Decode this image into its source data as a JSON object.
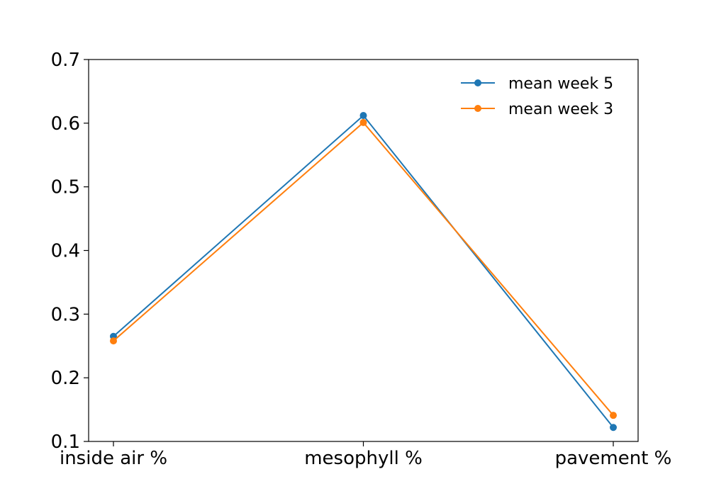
{
  "chart_data": {
    "type": "line",
    "categories": [
      "inside air %",
      "mesophyll %",
      "pavement %"
    ],
    "ylim": [
      0.1,
      0.7
    ],
    "yticks": [
      "0.1",
      "0.2",
      "0.3",
      "0.4",
      "0.5",
      "0.6",
      "0.7"
    ],
    "grid": false,
    "legend_position": "top-right",
    "series": [
      {
        "name": "mean week 5",
        "color": "#1f77b4",
        "values": [
          0.265,
          0.612,
          0.122
        ]
      },
      {
        "name": "mean week 3",
        "color": "#ff7f0e",
        "values": [
          0.258,
          0.601,
          0.141
        ]
      }
    ]
  }
}
